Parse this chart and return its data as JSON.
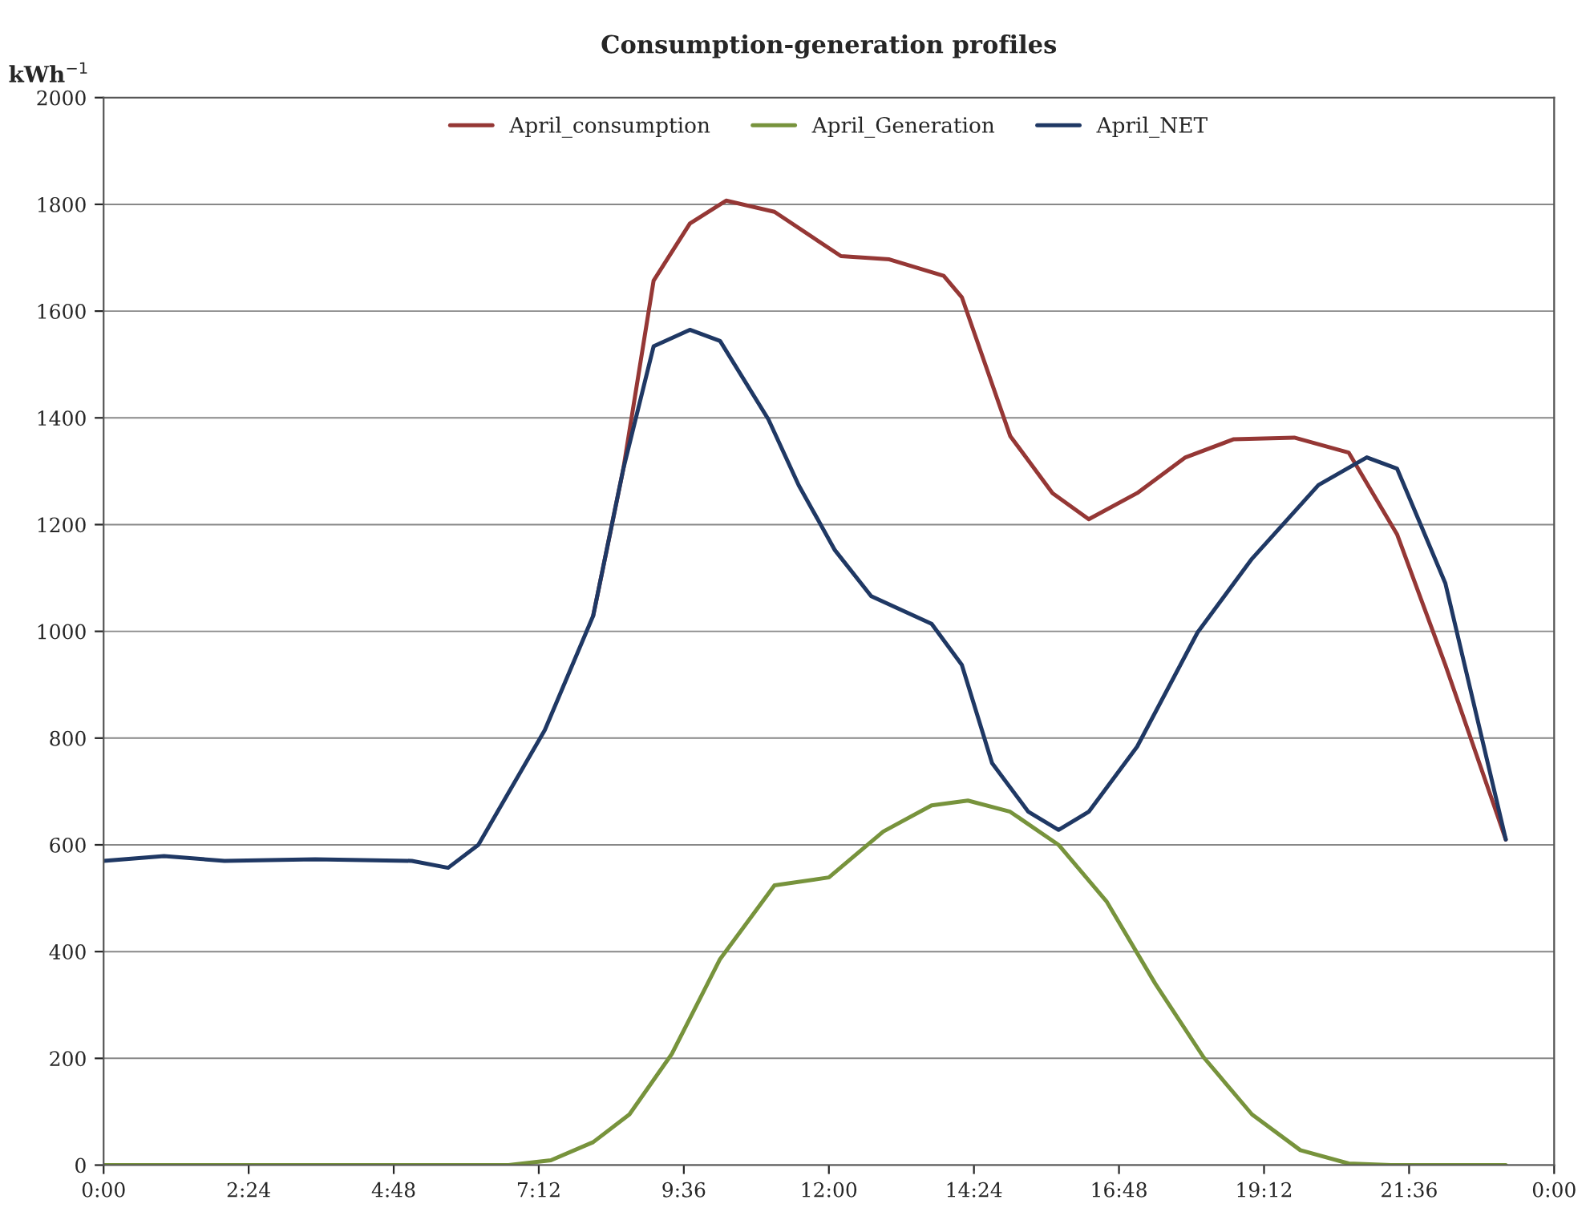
{
  "chart_data": {
    "type": "line",
    "title": "Consumption-generation profiles",
    "ylabel": "kWh$^{−1}$",
    "xlim": [
      0,
      24
    ],
    "xticks": [
      {
        "value": 0,
        "label": "0:00"
      },
      {
        "value": 2.4,
        "label": "2:24"
      },
      {
        "value": 4.8,
        "label": "4:48"
      },
      {
        "value": 7.2,
        "label": "7:12"
      },
      {
        "value": 9.6,
        "label": "9:36"
      },
      {
        "value": 12,
        "label": "12:00"
      },
      {
        "value": 14.4,
        "label": "14:24"
      },
      {
        "value": 16.8,
        "label": "16:48"
      },
      {
        "value": 19.2,
        "label": "19:12"
      },
      {
        "value": 21.6,
        "label": "21:36"
      },
      {
        "value": 24,
        "label": "0:00"
      }
    ],
    "ylim": [
      0,
      2000
    ],
    "yticks": [
      0,
      200,
      400,
      600,
      800,
      1000,
      1200,
      1400,
      1600,
      1800,
      2000
    ],
    "grid": "y",
    "legend": "top",
    "marker": "none",
    "line_style": "solid",
    "series": [
      {
        "name": "April_consumption",
        "color": "#953735",
        "x": [
          8.1,
          8.6,
          9.1,
          9.7,
          10.3,
          11.1,
          12.2,
          13.0,
          13.9,
          14.2,
          15.0,
          15.7,
          16.3,
          17.1,
          17.9,
          18.7,
          19.7,
          20.6,
          21.4,
          22.2,
          23.2
        ],
        "values": [
          1029,
          1305,
          1657,
          1764,
          1807,
          1786,
          1703,
          1697,
          1666,
          1626,
          1366,
          1259,
          1210,
          1259,
          1326,
          1360,
          1363,
          1335,
          1182,
          937,
          610
        ]
      },
      {
        "name": "April_Generation",
        "color": "#77933c",
        "x": [
          0,
          6.7,
          7.4,
          8.1,
          8.7,
          9.4,
          10.2,
          11.1,
          12.0,
          12.9,
          13.7,
          14.3,
          15.0,
          15.8,
          16.6,
          17.4,
          18.2,
          19.0,
          19.8,
          20.6,
          21.3,
          23.2
        ],
        "values": [
          0,
          0,
          9,
          43,
          95,
          208,
          386,
          524,
          539,
          625,
          674,
          683,
          662,
          600,
          493,
          340,
          202,
          95,
          28,
          3,
          0,
          0
        ]
      },
      {
        "name": "April_NET",
        "color": "#1f3864",
        "x": [
          0,
          1.0,
          2.0,
          3.5,
          5.1,
          5.7,
          6.2,
          7.3,
          8.1,
          8.6,
          9.1,
          9.7,
          10.2,
          11.0,
          11.5,
          12.1,
          12.7,
          13.7,
          14.2,
          14.7,
          15.3,
          15.8,
          16.3,
          17.1,
          18.1,
          19.0,
          20.1,
          20.9,
          21.4,
          22.2,
          23.2
        ],
        "values": [
          570,
          579,
          570,
          573,
          570,
          557,
          600,
          815,
          1029,
          1305,
          1534,
          1565,
          1544,
          1397,
          1274,
          1152,
          1066,
          1014,
          937,
          753,
          662,
          628,
          662,
          784,
          998,
          1136,
          1274,
          1326,
          1305,
          1090,
          610
        ]
      }
    ]
  }
}
